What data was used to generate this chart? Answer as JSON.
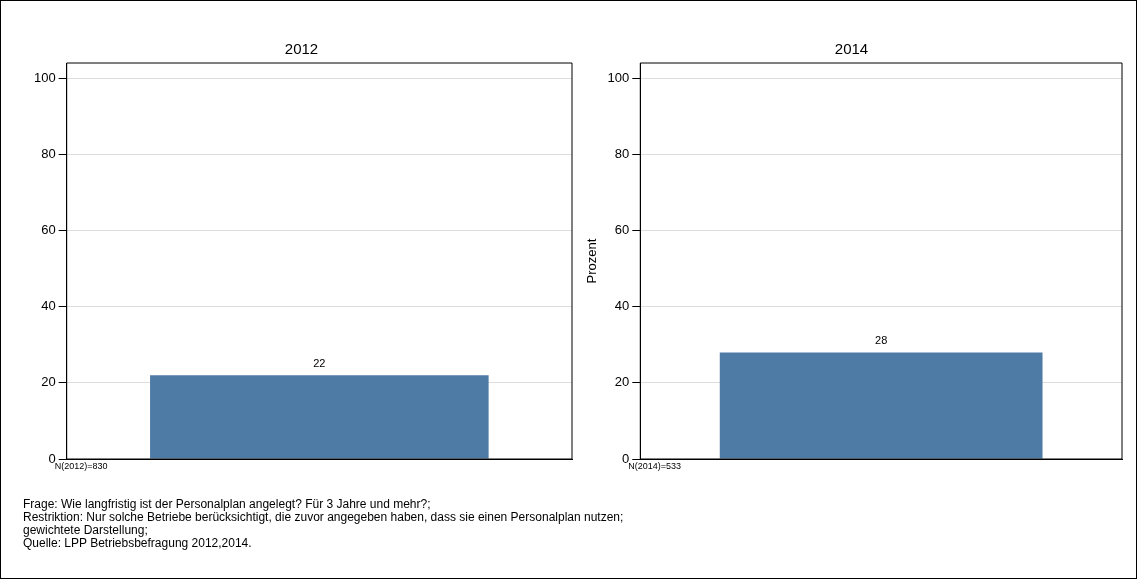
{
  "chart_data": [
    {
      "type": "bar",
      "title": "2012",
      "categories": [
        null
      ],
      "values": [
        22
      ],
      "color": "#4e7aa6",
      "data_labels": true,
      "ylim": [
        0,
        104
      ],
      "yticks": [
        0,
        20,
        40,
        60,
        80,
        100
      ],
      "grid": "y",
      "tick_labels": "y",
      "annotations": [
        "N(2012)=830",
        "Frage: Wie langfristig ist der Personalplan angelegt? Für 3 Jahre und mehr?;",
        "Restriktion: Nur solche Betriebe berücksichtigt, die zuvor angegeben haben, dass sie einen Personalplan nutzen;",
        "gewichtete Darstellung;",
        "Quelle: LPP Betriebsbefragung 2012,2014."
      ]
    },
    {
      "type": "bar",
      "title": "2014",
      "ylabel": "Prozent",
      "categories": [
        null
      ],
      "values": [
        28
      ],
      "color": "#4e7aa6",
      "data_labels": true,
      "ylim": [
        0,
        104
      ],
      "yticks": [
        0,
        20,
        40,
        60,
        80,
        100
      ],
      "grid": "y",
      "tick_labels": "y",
      "annotations": [
        "N(2014)=533"
      ]
    }
  ]
}
